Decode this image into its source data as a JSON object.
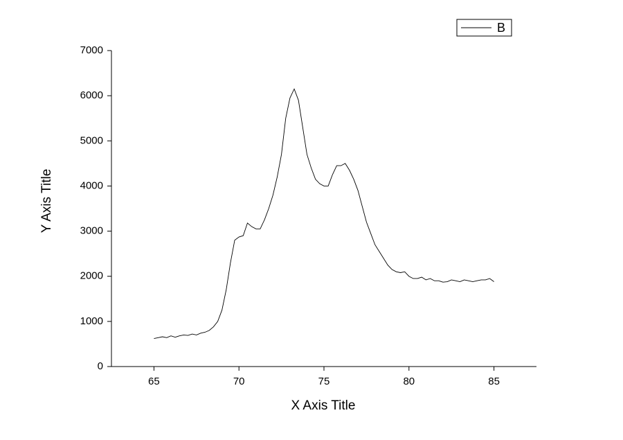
{
  "chart_data": {
    "type": "line",
    "x_label": "X Axis Title",
    "y_label": "Y Axis Title",
    "x": [
      65,
      65.25,
      65.5,
      65.75,
      66,
      66.25,
      66.5,
      66.75,
      67,
      67.25,
      67.5,
      67.75,
      68,
      68.25,
      68.5,
      68.75,
      69,
      69.25,
      69.5,
      69.75,
      70,
      70.25,
      70.5,
      70.75,
      71,
      71.25,
      71.5,
      71.75,
      72,
      72.25,
      72.5,
      72.75,
      73,
      73.25,
      73.5,
      73.75,
      74,
      74.25,
      74.5,
      74.75,
      75,
      75.25,
      75.5,
      75.75,
      76,
      76.25,
      76.5,
      76.75,
      77,
      77.25,
      77.5,
      77.75,
      78,
      78.25,
      78.5,
      78.75,
      79,
      79.25,
      79.5,
      79.75,
      80,
      80.25,
      80.5,
      80.75,
      81,
      81.25,
      81.5,
      81.75,
      82,
      82.25,
      82.5,
      82.75,
      83,
      83.25,
      83.5,
      83.75,
      84,
      84.25,
      84.5,
      84.75,
      85
    ],
    "series": [
      {
        "name": "B",
        "color": "#000000",
        "values": [
          620,
          640,
          660,
          640,
          680,
          650,
          680,
          700,
          690,
          720,
          700,
          740,
          760,
          800,
          880,
          1000,
          1250,
          1700,
          2300,
          2800,
          2870,
          2900,
          3180,
          3100,
          3050,
          3050,
          3250,
          3500,
          3800,
          4200,
          4700,
          5500,
          5950,
          6150,
          5900,
          5300,
          4700,
          4400,
          4150,
          4050,
          4000,
          4000,
          4250,
          4450,
          4450,
          4500,
          4350,
          4150,
          3900,
          3550,
          3200,
          2950,
          2700,
          2550,
          2400,
          2250,
          2150,
          2100,
          2080,
          2100,
          2000,
          1950,
          1950,
          1980,
          1920,
          1950,
          1900,
          1900,
          1870,
          1880,
          1920,
          1900,
          1880,
          1920,
          1900,
          1880,
          1900,
          1920,
          1920,
          1950,
          1880
        ]
      }
    ],
    "xlim": [
      62.5,
      87.5
    ],
    "xticks": [
      65,
      70,
      75,
      80,
      85
    ],
    "ylim": [
      0,
      7000
    ],
    "yticks": [
      0,
      1000,
      2000,
      3000,
      4000,
      5000,
      6000,
      7000
    ],
    "legend": "top-right",
    "grid": false
  }
}
